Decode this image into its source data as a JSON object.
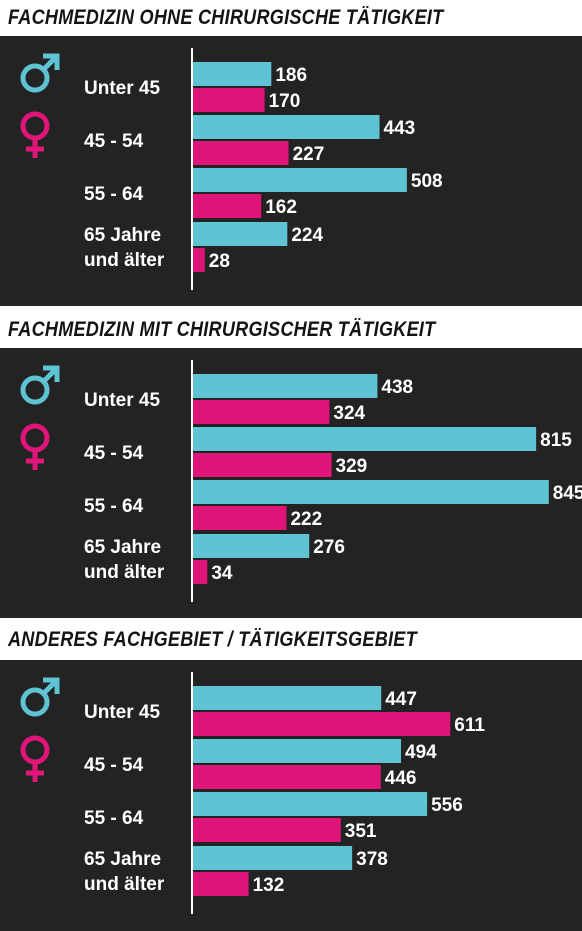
{
  "colors": {
    "male": "#5ec3d3",
    "female": "#e0157a",
    "panel_bg": "#232323",
    "axis": "#ffffff",
    "title": "#141414"
  },
  "legend_icons": [
    "male-symbol-icon",
    "female-symbol-icon"
  ],
  "chart_data": [
    {
      "type": "bar",
      "orientation": "horizontal",
      "title": "FACHMEDIZIN OHNE CHIRURGISCHE TÄTIGKEIT",
      "categories": [
        "Unter 45",
        "45 - 54",
        "55 - 64",
        "65 Jahre und älter"
      ],
      "category_lines": [
        [
          "Unter 45"
        ],
        [
          "45 - 54"
        ],
        [
          "55 - 64"
        ],
        [
          "65 Jahre",
          "und älter"
        ]
      ],
      "series": [
        {
          "symbol": "male",
          "values": [
            186,
            443,
            508,
            224
          ]
        },
        {
          "symbol": "female",
          "values": [
            170,
            227,
            162,
            28
          ]
        }
      ],
      "xlim": [
        0,
        950
      ]
    },
    {
      "type": "bar",
      "orientation": "horizontal",
      "title": "FACHMEDIZIN MIT CHIRURGISCHER TÄTIGKEIT",
      "categories": [
        "Unter 45",
        "45 - 54",
        "55 - 64",
        "65 Jahre und älter"
      ],
      "category_lines": [
        [
          "Unter 45"
        ],
        [
          "45 - 54"
        ],
        [
          "55 - 64"
        ],
        [
          "65 Jahre",
          "und älter"
        ]
      ],
      "series": [
        {
          "symbol": "male",
          "values": [
            438,
            815,
            845,
            276
          ]
        },
        {
          "symbol": "female",
          "values": [
            324,
            329,
            222,
            34
          ]
        }
      ],
      "xlim": [
        0,
        950
      ]
    },
    {
      "type": "bar",
      "orientation": "horizontal",
      "title": "ANDERES FACHGEBIET / TÄTIGKEITSGEBIET",
      "categories": [
        "Unter 45",
        "45 - 54",
        "55 - 64",
        "65 Jahre und älter"
      ],
      "category_lines": [
        [
          "Unter 45"
        ],
        [
          "45 - 54"
        ],
        [
          "55 - 64"
        ],
        [
          "65 Jahre",
          "und älter"
        ]
      ],
      "series": [
        {
          "symbol": "male",
          "values": [
            447,
            494,
            556,
            378
          ]
        },
        {
          "symbol": "female",
          "values": [
            611,
            446,
            351,
            132
          ]
        }
      ],
      "xlim": [
        0,
        950
      ]
    }
  ]
}
